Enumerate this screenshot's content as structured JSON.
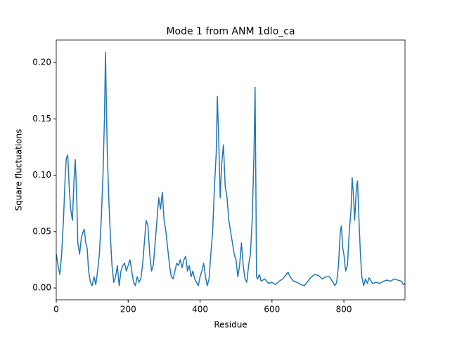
{
  "chart_data": {
    "type": "line",
    "title": "Mode 1 from ANM 1dlo_ca",
    "x_label": "Residue",
    "y_label": "Square fluctuations",
    "xlim": [
      0,
      970
    ],
    "ylim": [
      -0.0105,
      0.22
    ],
    "xticks": [
      0,
      200,
      400,
      600,
      800
    ],
    "yticks": [
      {
        "value": 0,
        "label": "0.00"
      },
      0.05,
      {
        "value": 0.1,
        "label": "0.10"
      },
      0.15,
      {
        "value": 0.2,
        "label": "0.20"
      }
    ],
    "x": [
      0,
      5,
      10,
      15,
      20,
      25,
      28,
      32,
      36,
      40,
      45,
      50,
      53,
      57,
      60,
      65,
      70,
      75,
      78,
      82,
      86,
      90,
      95,
      100,
      105,
      110,
      115,
      120,
      125,
      130,
      134,
      137,
      139,
      142,
      146,
      150,
      155,
      160,
      165,
      170,
      175,
      180,
      185,
      190,
      195,
      200,
      205,
      210,
      215,
      220,
      225,
      230,
      235,
      240,
      245,
      250,
      255,
      260,
      265,
      270,
      275,
      280,
      285,
      290,
      295,
      300,
      305,
      310,
      315,
      320,
      325,
      330,
      335,
      340,
      345,
      350,
      355,
      360,
      365,
      370,
      375,
      380,
      385,
      390,
      395,
      400,
      405,
      410,
      415,
      420,
      425,
      430,
      435,
      440,
      445,
      448,
      452,
      456,
      460,
      465,
      470,
      475,
      480,
      485,
      490,
      495,
      500,
      505,
      510,
      515,
      520,
      525,
      530,
      535,
      540,
      545,
      550,
      553,
      555,
      557,
      560,
      565,
      570,
      580,
      590,
      600,
      610,
      620,
      630,
      640,
      645,
      650,
      660,
      670,
      680,
      690,
      700,
      710,
      720,
      730,
      740,
      750,
      760,
      770,
      775,
      780,
      785,
      790,
      793,
      797,
      800,
      805,
      810,
      815,
      820,
      823,
      827,
      830,
      835,
      838,
      842,
      846,
      850,
      855,
      860,
      865,
      870,
      880,
      890,
      900,
      910,
      920,
      930,
      940,
      950,
      960,
      965,
      970
    ],
    "series": [
      {
        "name": "Mode 1",
        "color": "#1f77b4",
        "values": [
          0.03,
          0.02,
          0.012,
          0.03,
          0.06,
          0.1,
          0.115,
          0.118,
          0.09,
          0.07,
          0.06,
          0.1,
          0.114,
          0.08,
          0.04,
          0.03,
          0.045,
          0.05,
          0.052,
          0.04,
          0.035,
          0.015,
          0.005,
          0.002,
          0.01,
          0.003,
          0.015,
          0.03,
          0.06,
          0.1,
          0.15,
          0.209,
          0.17,
          0.12,
          0.08,
          0.05,
          0.02,
          0.005,
          0.01,
          0.02,
          0.002,
          0.015,
          0.02,
          0.022,
          0.015,
          0.02,
          0.025,
          0.015,
          0.005,
          0.002,
          0.01,
          0.005,
          0.008,
          0.02,
          0.04,
          0.06,
          0.055,
          0.03,
          0.015,
          0.02,
          0.04,
          0.06,
          0.08,
          0.07,
          0.085,
          0.06,
          0.05,
          0.035,
          0.02,
          0.01,
          0.008,
          0.015,
          0.022,
          0.02,
          0.025,
          0.018,
          0.025,
          0.028,
          0.015,
          0.02,
          0.01,
          0.015,
          0.008,
          0.005,
          0.002,
          0.01,
          0.015,
          0.022,
          0.01,
          0.002,
          0.008,
          0.03,
          0.05,
          0.09,
          0.12,
          0.17,
          0.13,
          0.08,
          0.11,
          0.127,
          0.09,
          0.08,
          0.06,
          0.05,
          0.04,
          0.03,
          0.025,
          0.01,
          0.02,
          0.04,
          0.02,
          0.008,
          0.005,
          0.02,
          0.03,
          0.06,
          0.12,
          0.178,
          0.1,
          0.01,
          0.008,
          0.012,
          0.006,
          0.008,
          0.004,
          0.005,
          0.003,
          0.006,
          0.008,
          0.012,
          0.014,
          0.01,
          0.006,
          0.005,
          0.003,
          0.002,
          0.006,
          0.01,
          0.012,
          0.011,
          0.008,
          0.01,
          0.01,
          0.005,
          0.002,
          0.005,
          0.02,
          0.05,
          0.055,
          0.035,
          0.03,
          0.015,
          0.02,
          0.05,
          0.07,
          0.098,
          0.08,
          0.06,
          0.09,
          0.095,
          0.06,
          0.03,
          0.01,
          0.002,
          0.008,
          0.004,
          0.009,
          0.004,
          0.005,
          0.004,
          0.006,
          0.007,
          0.006,
          0.008,
          0.007,
          0.006,
          0.003,
          0.004
        ]
      }
    ]
  }
}
